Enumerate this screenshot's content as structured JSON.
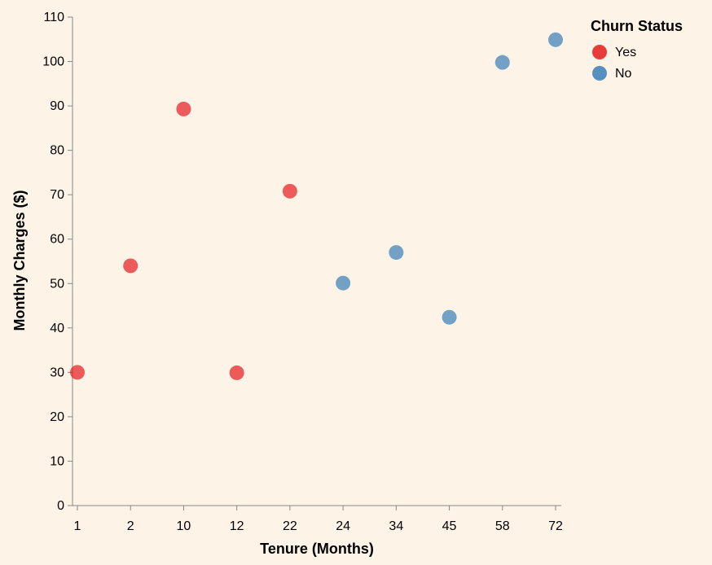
{
  "chart_data": {
    "type": "scatter",
    "xlabel": "Tenure (Months)",
    "ylabel": "Monthly Charges ($)",
    "x_scale": "ordinal",
    "categories": [
      "1",
      "2",
      "10",
      "12",
      "22",
      "24",
      "34",
      "45",
      "58",
      "72"
    ],
    "ylim": [
      0,
      110
    ],
    "yticks": [
      0,
      10,
      20,
      30,
      40,
      50,
      60,
      70,
      80,
      90,
      100,
      110
    ],
    "grid": false,
    "legend": {
      "title": "Churn Status",
      "placement": "top-right",
      "entries": [
        {
          "label": "Yes",
          "color": "#e41a1c"
        },
        {
          "label": "No",
          "color": "#377eb8"
        }
      ]
    },
    "series": [
      {
        "name": "Yes",
        "color": "#e41a1c",
        "points": [
          {
            "x": "1",
            "y": 30
          },
          {
            "x": "2",
            "y": 54
          },
          {
            "x": "10",
            "y": 89.3
          },
          {
            "x": "12",
            "y": 29.9
          },
          {
            "x": "22",
            "y": 70.8
          }
        ]
      },
      {
        "name": "No",
        "color": "#377eb8",
        "points": [
          {
            "x": "24",
            "y": 50.1
          },
          {
            "x": "34",
            "y": 57
          },
          {
            "x": "45",
            "y": 42.4
          },
          {
            "x": "58",
            "y": 99.8
          },
          {
            "x": "72",
            "y": 104.9
          }
        ]
      }
    ]
  }
}
